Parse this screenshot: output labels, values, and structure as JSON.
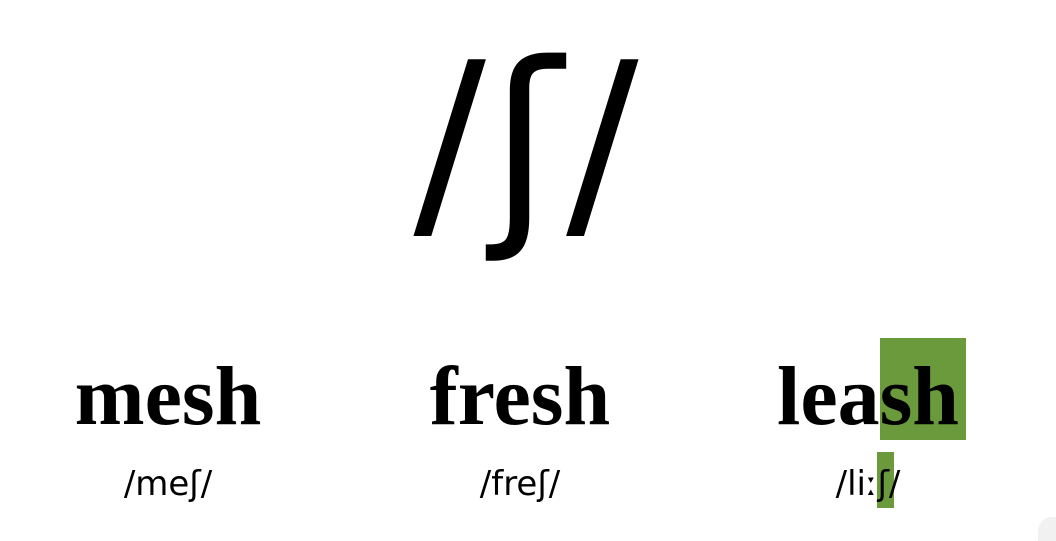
{
  "phoneme": "/ʃ/",
  "words": [
    {
      "word": "mesh",
      "ipa": "/meʃ/",
      "highlighted": false
    },
    {
      "word": "fresh",
      "ipa": "/freʃ/",
      "highlighted": false
    },
    {
      "word": "leash",
      "ipa": "/liːʃ/",
      "highlighted": true
    }
  ],
  "colors": {
    "background": "#ffffff",
    "text": "#000000",
    "highlight": "#6a9a3c"
  }
}
